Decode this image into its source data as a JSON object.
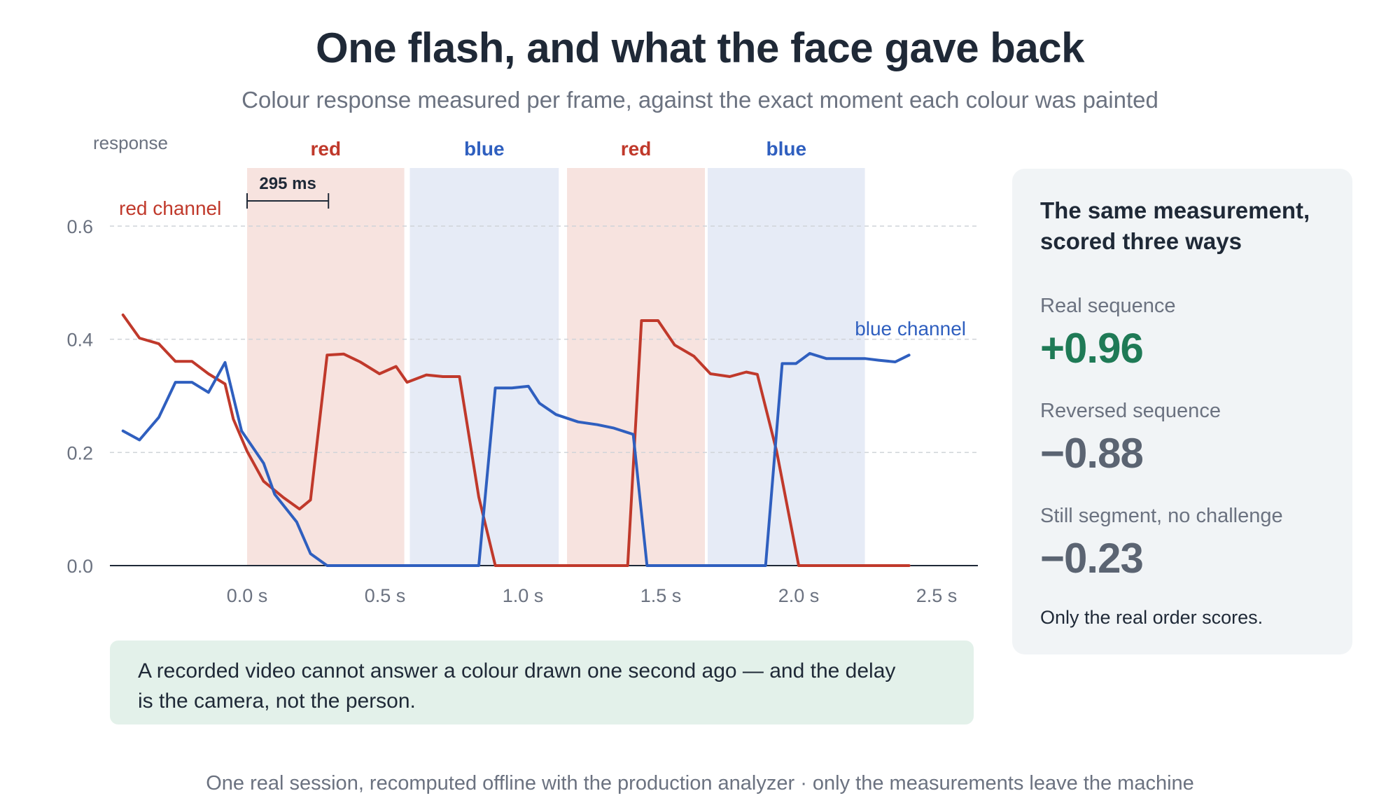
{
  "title": "One flash, and what the face gave back",
  "subtitle": "Colour response measured per frame, against the exact moment each colour was painted",
  "colors": {
    "red_channel": "#c0392b",
    "blue_channel": "#2f5fbf",
    "red_band": "#f7e3df",
    "blue_band": "#e6ebf6",
    "positive": "#1f7a56",
    "muted": "#5b6472",
    "callout_bg": "#e3f1ea",
    "panel_bg": "#f1f4f6"
  },
  "chart_data": {
    "type": "line",
    "title": "",
    "xlabel": "",
    "ylabel": "response",
    "xlim": [
      -0.5,
      2.65
    ],
    "ylim": [
      0,
      0.7
    ],
    "x_ticks": [
      0.0,
      0.5,
      1.0,
      1.5,
      2.0,
      2.5
    ],
    "x_tick_labels": [
      "0.0 s",
      "0.5 s",
      "1.0 s",
      "1.5 s",
      "2.0 s",
      "2.5 s"
    ],
    "y_ticks": [
      0.0,
      0.2,
      0.4,
      0.6
    ],
    "y_tick_labels": [
      "0.0",
      "0.2",
      "0.4",
      "0.6"
    ],
    "grid": "horizontal dashed",
    "bands": [
      {
        "label": "red",
        "color": "red",
        "start": 0.0,
        "end": 0.57
      },
      {
        "label": "blue",
        "color": "blue",
        "start": 0.59,
        "end": 1.13
      },
      {
        "label": "red",
        "color": "red",
        "start": 1.16,
        "end": 1.66
      },
      {
        "label": "blue",
        "color": "blue",
        "start": 1.67,
        "end": 2.24
      }
    ],
    "annotation": {
      "label": "295 ms",
      "start": 0.0,
      "end": 0.295,
      "y": 0.645
    },
    "series": [
      {
        "name": "red channel",
        "color": "red",
        "points": [
          [
            -0.45,
            0.443
          ],
          [
            -0.39,
            0.402
          ],
          [
            -0.32,
            0.392
          ],
          [
            -0.26,
            0.361
          ],
          [
            -0.2,
            0.361
          ],
          [
            -0.14,
            0.339
          ],
          [
            -0.08,
            0.321
          ],
          [
            -0.05,
            0.259
          ],
          [
            0.0,
            0.202
          ],
          [
            0.06,
            0.149
          ],
          [
            0.13,
            0.121
          ],
          [
            0.19,
            0.1
          ],
          [
            0.23,
            0.116
          ],
          [
            0.29,
            0.372
          ],
          [
            0.35,
            0.374
          ],
          [
            0.41,
            0.36
          ],
          [
            0.48,
            0.339
          ],
          [
            0.54,
            0.352
          ],
          [
            0.58,
            0.324
          ],
          [
            0.65,
            0.337
          ],
          [
            0.71,
            0.334
          ],
          [
            0.77,
            0.334
          ],
          [
            0.84,
            0.121
          ],
          [
            0.9,
            0.0
          ],
          [
            1.38,
            0.0
          ],
          [
            1.43,
            0.433
          ],
          [
            1.49,
            0.433
          ],
          [
            1.55,
            0.39
          ],
          [
            1.62,
            0.37
          ],
          [
            1.68,
            0.339
          ],
          [
            1.75,
            0.334
          ],
          [
            1.81,
            0.342
          ],
          [
            1.85,
            0.338
          ],
          [
            1.92,
            0.202
          ],
          [
            2.0,
            0.0
          ],
          [
            2.4,
            0.0
          ]
        ]
      },
      {
        "name": "blue channel",
        "color": "blue",
        "points": [
          [
            -0.45,
            0.238
          ],
          [
            -0.39,
            0.222
          ],
          [
            -0.32,
            0.262
          ],
          [
            -0.26,
            0.324
          ],
          [
            -0.2,
            0.324
          ],
          [
            -0.14,
            0.306
          ],
          [
            -0.08,
            0.359
          ],
          [
            -0.02,
            0.238
          ],
          [
            0.06,
            0.181
          ],
          [
            0.1,
            0.126
          ],
          [
            0.18,
            0.077
          ],
          [
            0.23,
            0.021
          ],
          [
            0.29,
            0.0
          ],
          [
            0.84,
            0.0
          ],
          [
            0.9,
            0.314
          ],
          [
            0.96,
            0.314
          ],
          [
            1.02,
            0.317
          ],
          [
            1.06,
            0.287
          ],
          [
            1.12,
            0.267
          ],
          [
            1.2,
            0.254
          ],
          [
            1.27,
            0.249
          ],
          [
            1.33,
            0.243
          ],
          [
            1.4,
            0.232
          ],
          [
            1.45,
            0.0
          ],
          [
            1.88,
            0.0
          ],
          [
            1.94,
            0.357
          ],
          [
            1.99,
            0.357
          ],
          [
            2.04,
            0.375
          ],
          [
            2.1,
            0.366
          ],
          [
            2.17,
            0.366
          ],
          [
            2.24,
            0.366
          ],
          [
            2.29,
            0.363
          ],
          [
            2.35,
            0.36
          ],
          [
            2.4,
            0.372
          ]
        ]
      }
    ]
  },
  "panel": {
    "heading": "The same measurement, scored three ways",
    "metrics": [
      {
        "label": "Real sequence",
        "value": "+0.96"
      },
      {
        "label": "Reversed sequence",
        "value": "−0.88"
      },
      {
        "label": "Still segment, no challenge",
        "value": "−0.23"
      }
    ],
    "footnote": "Only the real order scores."
  },
  "callout": "A recorded video cannot answer a colour drawn one second ago — and the delay is the camera, not the person.",
  "footer": "One real session, recomputed offline with the production analyzer · only the measurements leave the machine"
}
